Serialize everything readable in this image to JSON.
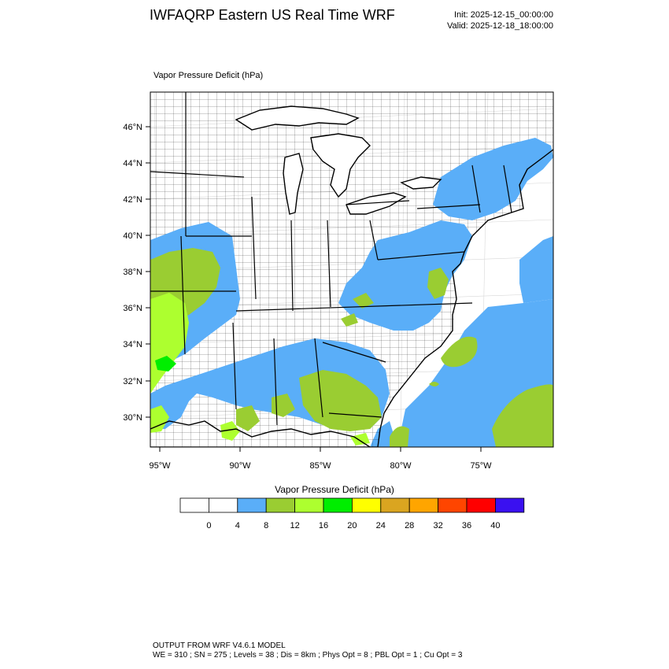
{
  "header": {
    "title": "IWFAQRP Eastern US Real Time WRF",
    "init": "Init: 2025-12-15_00:00:00",
    "valid": "Valid: 2025-12-18_18:00:00"
  },
  "map": {
    "field_label": "Vapor Pressure Deficit   (hPa)",
    "lat_labels": [
      "46°N",
      "44°N",
      "42°N",
      "40°N",
      "38°N",
      "36°N",
      "34°N",
      "32°N",
      "30°N"
    ],
    "lon_labels": [
      "95°W",
      "90°W",
      "85°W",
      "80°W",
      "75°W"
    ]
  },
  "colorbar": {
    "title": "Vapor Pressure Deficit  (hPa)",
    "colors": [
      "#ffffff",
      "#ffffff",
      "#5aaef8",
      "#9acd32",
      "#adff2f",
      "#00ee00",
      "#ffff00",
      "#daa520",
      "#ffa500",
      "#ff4500",
      "#ff0000",
      "#3a10f0"
    ],
    "labels": [
      "0",
      "4",
      "8",
      "12",
      "16",
      "20",
      "24",
      "28",
      "32",
      "36",
      "40"
    ]
  },
  "footer": {
    "line1": "OUTPUT FROM WRF V4.6.1 MODEL",
    "line2": "WE = 310 ; SN = 275 ; Levels = 38 ; Dis = 8km ; Phys Opt = 8 ; PBL Opt = 1 ; Cu Opt = 3"
  }
}
